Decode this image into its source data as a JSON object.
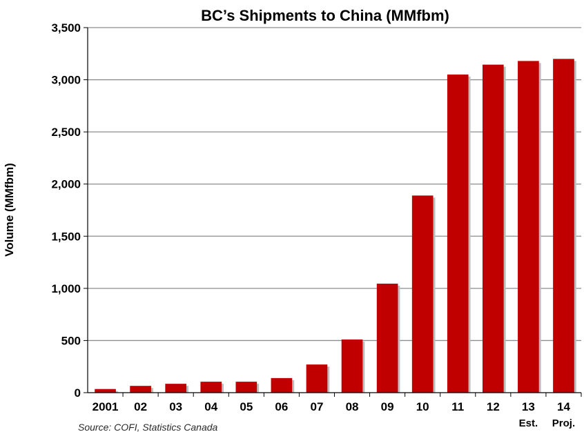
{
  "chart_data": {
    "type": "bar",
    "title": "BC’s Shipments to China (MMfbm)",
    "ylabel": "Volume (MMfbm)",
    "xlabel": "",
    "categories": [
      "2001",
      "02",
      "03",
      "04",
      "05",
      "06",
      "07",
      "08",
      "09",
      "10",
      "11",
      "12",
      "13",
      "14"
    ],
    "values": [
      35,
      65,
      85,
      105,
      105,
      140,
      270,
      510,
      1045,
      1890,
      3050,
      3145,
      3180,
      3200
    ],
    "ylim": [
      0,
      3500
    ],
    "yticks": [
      0,
      500,
      1000,
      1500,
      2000,
      2500,
      3000,
      3500
    ],
    "ytick_labels": [
      "0",
      "500",
      "1,000",
      "1,500",
      "2,000",
      "2,500",
      "3,000",
      "3,500"
    ],
    "grid": true,
    "legend": "none",
    "bar_color": "#C00000",
    "annotations": [
      {
        "category": "13",
        "text": "Est."
      },
      {
        "category": "14",
        "text": "Proj."
      }
    ]
  },
  "source_note": "Source: COFI, Statistics Canada"
}
